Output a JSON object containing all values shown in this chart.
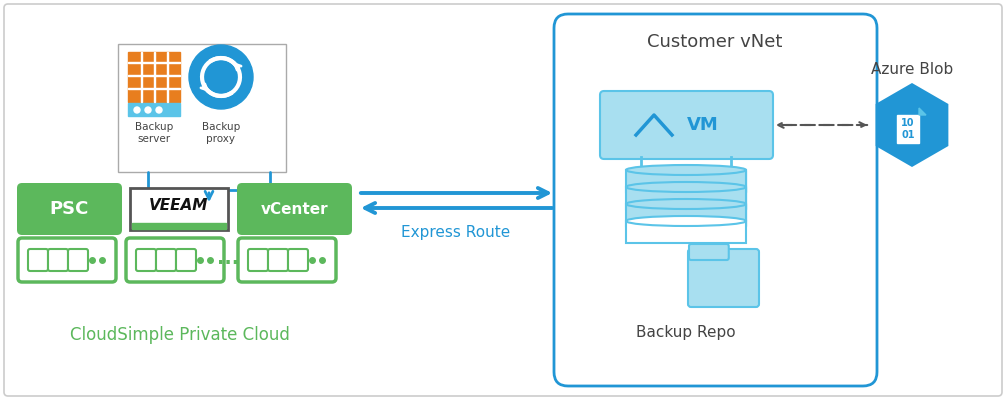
{
  "bg_color": "#ffffff",
  "border_color": "#cccccc",
  "green_color": "#5cb85c",
  "blue_color": "#2196d5",
  "blue_light": "#5bc4e8",
  "blue_lighter": "#a8dff0",
  "blue_border": "#3aaccc",
  "text_dark": "#444444",
  "text_green": "#5cb85c",
  "text_blue_dark": "#1a6fa8",
  "psc_label": "PSC",
  "veeam_label": "VEEAM",
  "vcenter_label": "vCenter",
  "express_route_label": "Express Route",
  "customer_vnet_label": "Customer vNet",
  "azure_blob_label": "Azure Blob",
  "backup_repo_label": "Backup Repo",
  "backup_server_label": "Backup\nserver",
  "backup_proxy_label": "Backup\nproxy",
  "cloud_label": "CloudSimple Private Cloud",
  "avm_label": "△VM"
}
